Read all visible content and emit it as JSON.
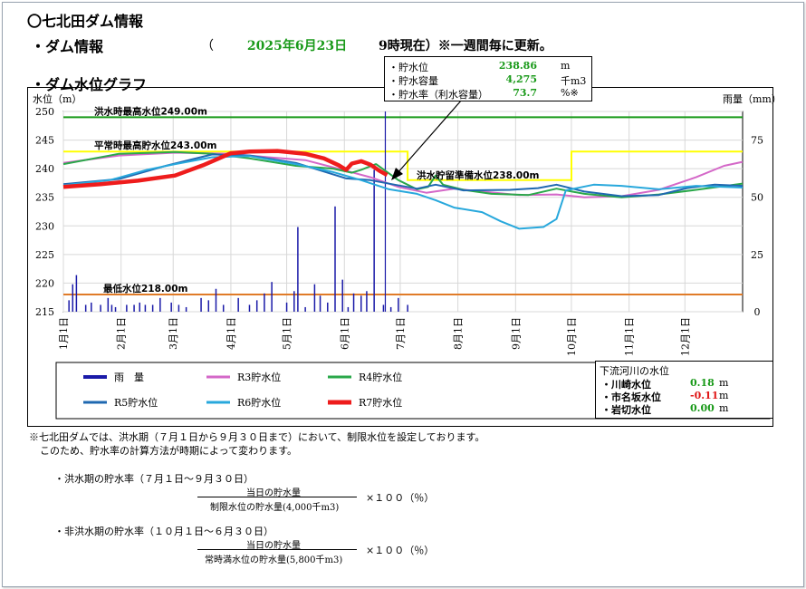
{
  "header": {
    "title": "〇七北田ダム情報",
    "section_dam": "・ダム情報",
    "paren_open": "（",
    "date": "2025年6月23日",
    "time_note": "9時現在）※一週間毎に更新。",
    "section_graph": "・ダム水位グラフ"
  },
  "info_box": {
    "rows": [
      {
        "label": "・貯水位",
        "value": "238.86",
        "unit": "m"
      },
      {
        "label": "・貯水容量",
        "value": "4,275",
        "unit": "千m3"
      },
      {
        "label": "・貯水率（利水容量）",
        "value": "73.7",
        "unit": "%※"
      }
    ]
  },
  "chart_data": {
    "type": "line",
    "ylabel_left": "水位（m）",
    "ylabel_right": "雨量（mm）",
    "yleft_ticks": [
      "250",
      "245",
      "240",
      "235",
      "230",
      "225",
      "220",
      "215"
    ],
    "yright_ticks": [
      "75",
      "50",
      "25",
      "0"
    ],
    "ylim_left": [
      215,
      250
    ],
    "ylim_right": [
      0,
      75
    ],
    "months": [
      "1月1日",
      "2月1日",
      "3月1日",
      "4月1日",
      "5月1日",
      "6月1日",
      "7月1日",
      "8月1日",
      "9月1日",
      "10月1日",
      "11月1日",
      "12月1日"
    ],
    "reference_lines": [
      {
        "label": "洪水時最高水位249.00m",
        "value": 249.0,
        "color": "#1a9a1a"
      },
      {
        "label": "平常時最高貯水位243.00m",
        "value": 243.0,
        "color": "#ffff00"
      },
      {
        "label": "洪水貯留準備水位238.00m",
        "value": 238.0,
        "color": "#ffff00"
      },
      {
        "label": "最低水位218.00m",
        "value": 218.0,
        "color": "#e07b28"
      }
    ],
    "limit_line": [
      [
        0,
        243
      ],
      [
        185,
        243
      ],
      [
        185,
        238
      ],
      [
        273,
        238
      ],
      [
        273,
        243
      ],
      [
        365,
        243
      ]
    ],
    "series": [
      {
        "name": "R3貯水位",
        "color": "#d468c8",
        "points": [
          [
            0,
            241.0
          ],
          [
            30,
            242.3
          ],
          [
            60,
            242.8
          ],
          [
            90,
            242.6
          ],
          [
            110,
            242.0
          ],
          [
            130,
            241.5
          ],
          [
            150,
            239.8
          ],
          [
            165,
            238.5
          ],
          [
            180,
            236.8
          ],
          [
            195,
            235.8
          ],
          [
            210,
            236.5
          ],
          [
            225,
            236.0
          ],
          [
            245,
            235.4
          ],
          [
            265,
            235.5
          ],
          [
            280,
            235.0
          ],
          [
            300,
            235.2
          ],
          [
            320,
            236.3
          ],
          [
            340,
            238.5
          ],
          [
            355,
            240.5
          ],
          [
            365,
            241.2
          ]
        ]
      },
      {
        "name": "R4貯水位",
        "color": "#2aa84a",
        "points": [
          [
            0,
            240.8
          ],
          [
            30,
            242.6
          ],
          [
            60,
            242.9
          ],
          [
            80,
            242.6
          ],
          [
            100,
            241.8
          ],
          [
            125,
            240.5
          ],
          [
            145,
            240.0
          ],
          [
            155,
            239.3
          ],
          [
            160,
            239.8
          ],
          [
            168,
            240.8
          ],
          [
            180,
            238.0
          ],
          [
            190,
            236.4
          ],
          [
            196,
            236.8
          ],
          [
            200,
            238.8
          ],
          [
            204,
            237.2
          ],
          [
            215,
            236.3
          ],
          [
            230,
            235.6
          ],
          [
            250,
            235.4
          ],
          [
            265,
            236.5
          ],
          [
            280,
            235.6
          ],
          [
            300,
            235.0
          ],
          [
            320,
            235.5
          ],
          [
            340,
            236.3
          ],
          [
            365,
            237.4
          ]
        ]
      },
      {
        "name": "R5貯水位",
        "color": "#1f68b0",
        "points": [
          [
            0,
            237.3
          ],
          [
            30,
            238.2
          ],
          [
            55,
            240.5
          ],
          [
            80,
            242.5
          ],
          [
            100,
            242.3
          ],
          [
            125,
            241.0
          ],
          [
            140,
            239.5
          ],
          [
            152,
            238.3
          ],
          [
            165,
            238.0
          ],
          [
            178,
            237.2
          ],
          [
            190,
            236.5
          ],
          [
            200,
            237.2
          ],
          [
            215,
            236.2
          ],
          [
            240,
            236.3
          ],
          [
            255,
            236.6
          ],
          [
            265,
            237.2
          ],
          [
            280,
            236.0
          ],
          [
            300,
            235.2
          ],
          [
            320,
            235.4
          ],
          [
            335,
            236.6
          ],
          [
            350,
            237.2
          ],
          [
            365,
            237.0
          ]
        ]
      },
      {
        "name": "R6貯水位",
        "color": "#28a8dc",
        "points": [
          [
            0,
            237.1
          ],
          [
            25,
            238.0
          ],
          [
            45,
            239.8
          ],
          [
            60,
            240.8
          ],
          [
            80,
            242.0
          ],
          [
            100,
            242.2
          ],
          [
            125,
            240.8
          ],
          [
            145,
            239.4
          ],
          [
            160,
            238.0
          ],
          [
            175,
            236.4
          ],
          [
            190,
            235.6
          ],
          [
            200,
            234.5
          ],
          [
            210,
            233.2
          ],
          [
            225,
            232.4
          ],
          [
            235,
            230.8
          ],
          [
            245,
            229.5
          ],
          [
            258,
            229.8
          ],
          [
            265,
            231.2
          ],
          [
            270,
            236.2
          ],
          [
            285,
            237.2
          ],
          [
            300,
            237.0
          ],
          [
            320,
            236.4
          ],
          [
            340,
            237.0
          ],
          [
            365,
            236.7
          ]
        ]
      },
      {
        "name": "R7貯水位",
        "color": "#ee1c1c",
        "points": [
          [
            0,
            236.8
          ],
          [
            20,
            237.3
          ],
          [
            40,
            237.9
          ],
          [
            60,
            238.8
          ],
          [
            75,
            240.6
          ],
          [
            90,
            242.7
          ],
          [
            100,
            243.0
          ],
          [
            115,
            243.1
          ],
          [
            130,
            242.6
          ],
          [
            140,
            241.8
          ],
          [
            148,
            240.6
          ],
          [
            152,
            239.8
          ],
          [
            155,
            240.9
          ],
          [
            160,
            241.3
          ],
          [
            165,
            240.7
          ],
          [
            170,
            239.6
          ],
          [
            174,
            238.9
          ]
        ]
      }
    ],
    "rain_bars": [
      [
        3,
        5
      ],
      [
        5,
        12
      ],
      [
        7,
        16
      ],
      [
        12,
        3
      ],
      [
        15,
        4
      ],
      [
        20,
        3
      ],
      [
        24,
        6
      ],
      [
        26,
        3
      ],
      [
        28,
        2
      ],
      [
        34,
        3
      ],
      [
        38,
        3
      ],
      [
        41,
        4
      ],
      [
        44,
        3
      ],
      [
        48,
        3
      ],
      [
        52,
        6
      ],
      [
        58,
        4
      ],
      [
        62,
        3
      ],
      [
        66,
        2
      ],
      [
        74,
        6
      ],
      [
        78,
        5
      ],
      [
        82,
        10
      ],
      [
        86,
        3
      ],
      [
        94,
        6
      ],
      [
        100,
        3
      ],
      [
        104,
        5
      ],
      [
        108,
        8
      ],
      [
        112,
        13
      ],
      [
        120,
        4
      ],
      [
        124,
        9
      ],
      [
        126,
        37
      ],
      [
        130,
        2
      ],
      [
        135,
        12
      ],
      [
        138,
        7
      ],
      [
        142,
        4
      ],
      [
        146,
        46
      ],
      [
        150,
        14
      ],
      [
        153,
        2
      ],
      [
        156,
        8
      ],
      [
        160,
        7
      ],
      [
        163,
        9
      ],
      [
        167,
        62
      ],
      [
        172,
        3
      ],
      [
        176,
        2
      ],
      [
        180,
        6
      ],
      [
        185,
        3
      ]
    ],
    "legend": [
      {
        "name": "雨　量",
        "color": "#1a1aa8"
      },
      {
        "name": "R3貯水位",
        "color": "#d468c8"
      },
      {
        "name": "R4貯水位",
        "color": "#2aa84a"
      },
      {
        "name": "R5貯水位",
        "color": "#1f68b0"
      },
      {
        "name": "R6貯水位",
        "color": "#28a8dc"
      },
      {
        "name": "R7貯水位",
        "color": "#ee1c1c"
      }
    ]
  },
  "river_box": {
    "title": "下流河川の水位",
    "rows": [
      {
        "label": "・川崎水位",
        "value": "0.18",
        "unit": "m",
        "color": "#1a9a1a"
      },
      {
        "label": "・市名坂水位",
        "value": "-0.11",
        "unit": "m",
        "color": "#e01818"
      },
      {
        "label": "・岩切水位",
        "value": "0.00",
        "unit": "m",
        "color": "#1a9a1a"
      }
    ]
  },
  "notes": {
    "line1": "※七北田ダムでは、洪水期（７月１日から９月３０日まで）において、制限水位を設定しております。",
    "line2": "このため、貯水率の計算方法が時期によって変わります。",
    "flood_title": "・洪水期の貯水率（７月１日～９月３０日）",
    "flood_num": "当日の貯水量",
    "flood_den": "制限水位の貯水量(4,000千m3)",
    "flood_mult": "×１００（％）",
    "nonflood_title": "・非洪水期の貯水率（１０月１日～６月３０日）",
    "nonflood_num": "当日の貯水量",
    "nonflood_den": "常時満水位の貯水量(5,800千m3)",
    "nonflood_mult": "×１００（％）"
  }
}
